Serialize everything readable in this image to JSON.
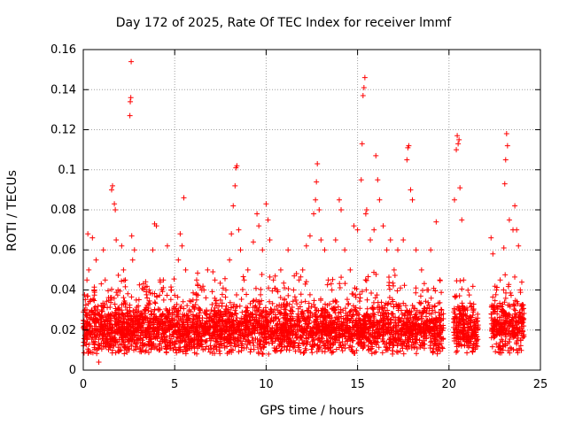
{
  "chart_data": {
    "type": "scatter",
    "title": "Day 172 of 2025, Rate Of TEC Index for receiver lmmf",
    "xlabel": "GPS time / hours",
    "ylabel": "ROTI / TECUs",
    "xlim": [
      0,
      25
    ],
    "ylim": [
      0,
      0.16
    ],
    "xticks": [
      "0",
      "5",
      "10",
      "15",
      "20",
      "25"
    ],
    "yticks": [
      "0",
      "0.02",
      "0.04",
      "0.06",
      "0.08",
      "0.1",
      "0.12",
      "0.14",
      "0.16"
    ],
    "grid": true,
    "marker": "+",
    "color": "#ff0000",
    "series": [
      {
        "points": [
          [
            0.05,
            0.022
          ],
          [
            0.1,
            0.03
          ],
          [
            0.2,
            0.045
          ],
          [
            0.25,
            0.068
          ],
          [
            0.3,
            0.05
          ],
          [
            0.4,
            0.035
          ],
          [
            0.5,
            0.066
          ],
          [
            0.6,
            0.04
          ],
          [
            0.7,
            0.055
          ],
          [
            0.8,
            0.025
          ],
          [
            0.85,
            0.004
          ],
          [
            0.9,
            0.012
          ],
          [
            1.0,
            0.03
          ],
          [
            1.1,
            0.06
          ],
          [
            1.2,
            0.045
          ],
          [
            1.4,
            0.02
          ],
          [
            1.5,
            0.035
          ],
          [
            1.55,
            0.09
          ],
          [
            1.6,
            0.092
          ],
          [
            1.7,
            0.083
          ],
          [
            1.75,
            0.08
          ],
          [
            1.8,
            0.065
          ],
          [
            1.9,
            0.04
          ],
          [
            2.0,
            0.03
          ],
          [
            2.1,
            0.062
          ],
          [
            2.2,
            0.05
          ],
          [
            2.3,
            0.045
          ],
          [
            2.4,
            0.03
          ],
          [
            2.5,
            0.015
          ],
          [
            2.55,
            0.127
          ],
          [
            2.57,
            0.134
          ],
          [
            2.6,
            0.136
          ],
          [
            2.62,
            0.154
          ],
          [
            2.65,
            0.067
          ],
          [
            2.7,
            0.055
          ],
          [
            2.8,
            0.06
          ],
          [
            2.9,
            0.035
          ],
          [
            3.0,
            0.02
          ],
          [
            3.2,
            0.025
          ],
          [
            3.4,
            0.03
          ],
          [
            3.6,
            0.04
          ],
          [
            3.8,
            0.06
          ],
          [
            3.9,
            0.073
          ],
          [
            4.0,
            0.072
          ],
          [
            4.2,
            0.045
          ],
          [
            4.4,
            0.035
          ],
          [
            4.6,
            0.062
          ],
          [
            4.8,
            0.04
          ],
          [
            5.0,
            0.025
          ],
          [
            5.2,
            0.055
          ],
          [
            5.3,
            0.068
          ],
          [
            5.4,
            0.062
          ],
          [
            5.5,
            0.086
          ],
          [
            5.6,
            0.05
          ],
          [
            5.8,
            0.03
          ],
          [
            6.0,
            0.035
          ],
          [
            6.2,
            0.045
          ],
          [
            6.4,
            0.03
          ],
          [
            6.6,
            0.04
          ],
          [
            6.8,
            0.05
          ],
          [
            7.0,
            0.03
          ],
          [
            7.2,
            0.045
          ],
          [
            7.5,
            0.035
          ],
          [
            7.8,
            0.04
          ],
          [
            8.0,
            0.055
          ],
          [
            8.1,
            0.068
          ],
          [
            8.2,
            0.082
          ],
          [
            8.3,
            0.092
          ],
          [
            8.35,
            0.101
          ],
          [
            8.4,
            0.102
          ],
          [
            8.5,
            0.07
          ],
          [
            8.6,
            0.06
          ],
          [
            8.8,
            0.045
          ],
          [
            9.0,
            0.05
          ],
          [
            9.3,
            0.064
          ],
          [
            9.5,
            0.078
          ],
          [
            9.6,
            0.072
          ],
          [
            9.8,
            0.06
          ],
          [
            10.0,
            0.083
          ],
          [
            10.1,
            0.075
          ],
          [
            10.2,
            0.065
          ],
          [
            10.4,
            0.045
          ],
          [
            10.6,
            0.04
          ],
          [
            10.8,
            0.05
          ],
          [
            11.0,
            0.035
          ],
          [
            11.2,
            0.06
          ],
          [
            11.5,
            0.04
          ],
          [
            11.8,
            0.045
          ],
          [
            12.0,
            0.05
          ],
          [
            12.2,
            0.062
          ],
          [
            12.4,
            0.067
          ],
          [
            12.6,
            0.078
          ],
          [
            12.7,
            0.085
          ],
          [
            12.75,
            0.094
          ],
          [
            12.8,
            0.103
          ],
          [
            12.9,
            0.08
          ],
          [
            13.0,
            0.065
          ],
          [
            13.2,
            0.06
          ],
          [
            13.4,
            0.045
          ],
          [
            13.6,
            0.04
          ],
          [
            13.8,
            0.065
          ],
          [
            14.0,
            0.085
          ],
          [
            14.1,
            0.08
          ],
          [
            14.3,
            0.06
          ],
          [
            14.6,
            0.05
          ],
          [
            14.8,
            0.072
          ],
          [
            15.0,
            0.07
          ],
          [
            15.2,
            0.095
          ],
          [
            15.25,
            0.113
          ],
          [
            15.3,
            0.137
          ],
          [
            15.35,
            0.141
          ],
          [
            15.4,
            0.146
          ],
          [
            15.45,
            0.078
          ],
          [
            15.5,
            0.08
          ],
          [
            15.7,
            0.065
          ],
          [
            15.9,
            0.07
          ],
          [
            16.0,
            0.107
          ],
          [
            16.1,
            0.095
          ],
          [
            16.2,
            0.085
          ],
          [
            16.4,
            0.072
          ],
          [
            16.6,
            0.06
          ],
          [
            16.8,
            0.065
          ],
          [
            17.0,
            0.05
          ],
          [
            17.2,
            0.06
          ],
          [
            17.5,
            0.065
          ],
          [
            17.7,
            0.105
          ],
          [
            17.75,
            0.111
          ],
          [
            17.8,
            0.112
          ],
          [
            17.9,
            0.09
          ],
          [
            18.0,
            0.085
          ],
          [
            18.2,
            0.06
          ],
          [
            18.5,
            0.05
          ],
          [
            18.8,
            0.04
          ],
          [
            19.0,
            0.06
          ],
          [
            19.3,
            0.074
          ],
          [
            19.5,
            0.045
          ],
          [
            19.6,
            0.03
          ],
          [
            20.3,
            0.085
          ],
          [
            20.4,
            0.11
          ],
          [
            20.45,
            0.117
          ],
          [
            20.5,
            0.113
          ],
          [
            20.55,
            0.115
          ],
          [
            20.6,
            0.091
          ],
          [
            20.7,
            0.075
          ],
          [
            20.8,
            0.045
          ],
          [
            21.0,
            0.03
          ],
          [
            21.2,
            0.025
          ],
          [
            21.4,
            0.02
          ],
          [
            22.3,
            0.066
          ],
          [
            22.4,
            0.058
          ],
          [
            22.6,
            0.04
          ],
          [
            22.8,
            0.045
          ],
          [
            23.0,
            0.061
          ],
          [
            23.05,
            0.093
          ],
          [
            23.1,
            0.105
          ],
          [
            23.15,
            0.118
          ],
          [
            23.2,
            0.112
          ],
          [
            23.3,
            0.075
          ],
          [
            23.5,
            0.07
          ],
          [
            23.6,
            0.082
          ],
          [
            23.7,
            0.07
          ],
          [
            23.8,
            0.062
          ],
          [
            23.9,
            0.04
          ],
          [
            24.0,
            0.03
          ]
        ]
      }
    ]
  }
}
